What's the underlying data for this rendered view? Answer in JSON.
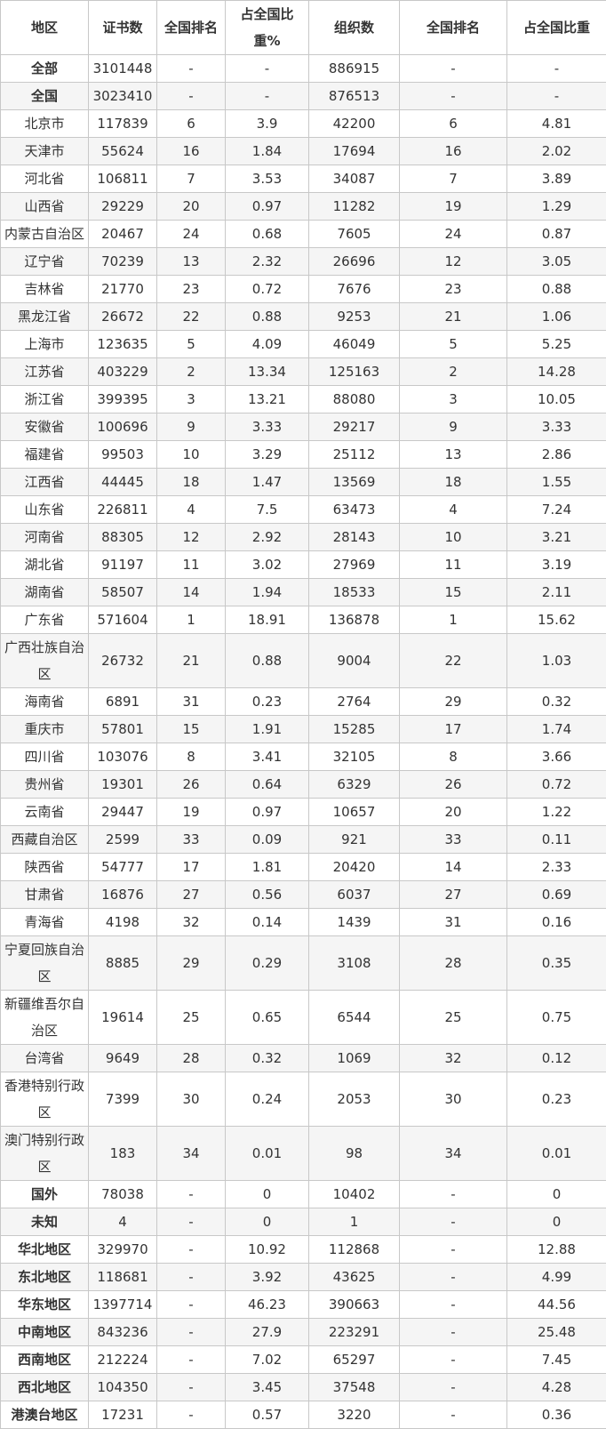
{
  "table": {
    "headers": [
      "地区",
      "证书数",
      "全国排名",
      "占全国比重%",
      "组织数",
      "全国排名",
      "占全国比重"
    ],
    "rows": [
      {
        "bold": true,
        "cells": [
          "全部",
          "3101448",
          "-",
          "-",
          "886915",
          "-",
          "-"
        ]
      },
      {
        "bold": true,
        "cells": [
          "全国",
          "3023410",
          "-",
          "-",
          "876513",
          "-",
          "-"
        ]
      },
      {
        "bold": false,
        "cells": [
          "北京市",
          "117839",
          "6",
          "3.9",
          "42200",
          "6",
          "4.81"
        ]
      },
      {
        "bold": false,
        "cells": [
          "天津市",
          "55624",
          "16",
          "1.84",
          "17694",
          "16",
          "2.02"
        ]
      },
      {
        "bold": false,
        "cells": [
          "河北省",
          "106811",
          "7",
          "3.53",
          "34087",
          "7",
          "3.89"
        ]
      },
      {
        "bold": false,
        "cells": [
          "山西省",
          "29229",
          "20",
          "0.97",
          "11282",
          "19",
          "1.29"
        ]
      },
      {
        "bold": false,
        "cells": [
          "内蒙古自治区",
          "20467",
          "24",
          "0.68",
          "7605",
          "24",
          "0.87"
        ]
      },
      {
        "bold": false,
        "cells": [
          "辽宁省",
          "70239",
          "13",
          "2.32",
          "26696",
          "12",
          "3.05"
        ]
      },
      {
        "bold": false,
        "cells": [
          "吉林省",
          "21770",
          "23",
          "0.72",
          "7676",
          "23",
          "0.88"
        ]
      },
      {
        "bold": false,
        "cells": [
          "黑龙江省",
          "26672",
          "22",
          "0.88",
          "9253",
          "21",
          "1.06"
        ]
      },
      {
        "bold": false,
        "cells": [
          "上海市",
          "123635",
          "5",
          "4.09",
          "46049",
          "5",
          "5.25"
        ]
      },
      {
        "bold": false,
        "cells": [
          "江苏省",
          "403229",
          "2",
          "13.34",
          "125163",
          "2",
          "14.28"
        ]
      },
      {
        "bold": false,
        "cells": [
          "浙江省",
          "399395",
          "3",
          "13.21",
          "88080",
          "3",
          "10.05"
        ]
      },
      {
        "bold": false,
        "cells": [
          "安徽省",
          "100696",
          "9",
          "3.33",
          "29217",
          "9",
          "3.33"
        ]
      },
      {
        "bold": false,
        "cells": [
          "福建省",
          "99503",
          "10",
          "3.29",
          "25112",
          "13",
          "2.86"
        ]
      },
      {
        "bold": false,
        "cells": [
          "江西省",
          "44445",
          "18",
          "1.47",
          "13569",
          "18",
          "1.55"
        ]
      },
      {
        "bold": false,
        "cells": [
          "山东省",
          "226811",
          "4",
          "7.5",
          "63473",
          "4",
          "7.24"
        ]
      },
      {
        "bold": false,
        "cells": [
          "河南省",
          "88305",
          "12",
          "2.92",
          "28143",
          "10",
          "3.21"
        ]
      },
      {
        "bold": false,
        "cells": [
          "湖北省",
          "91197",
          "11",
          "3.02",
          "27969",
          "11",
          "3.19"
        ]
      },
      {
        "bold": false,
        "cells": [
          "湖南省",
          "58507",
          "14",
          "1.94",
          "18533",
          "15",
          "2.11"
        ]
      },
      {
        "bold": false,
        "cells": [
          "广东省",
          "571604",
          "1",
          "18.91",
          "136878",
          "1",
          "15.62"
        ]
      },
      {
        "bold": false,
        "cells": [
          "广西壮族自治区",
          "26732",
          "21",
          "0.88",
          "9004",
          "22",
          "1.03"
        ]
      },
      {
        "bold": false,
        "cells": [
          "海南省",
          "6891",
          "31",
          "0.23",
          "2764",
          "29",
          "0.32"
        ]
      },
      {
        "bold": false,
        "cells": [
          "重庆市",
          "57801",
          "15",
          "1.91",
          "15285",
          "17",
          "1.74"
        ]
      },
      {
        "bold": false,
        "cells": [
          "四川省",
          "103076",
          "8",
          "3.41",
          "32105",
          "8",
          "3.66"
        ]
      },
      {
        "bold": false,
        "cells": [
          "贵州省",
          "19301",
          "26",
          "0.64",
          "6329",
          "26",
          "0.72"
        ]
      },
      {
        "bold": false,
        "cells": [
          "云南省",
          "29447",
          "19",
          "0.97",
          "10657",
          "20",
          "1.22"
        ]
      },
      {
        "bold": false,
        "cells": [
          "西藏自治区",
          "2599",
          "33",
          "0.09",
          "921",
          "33",
          "0.11"
        ]
      },
      {
        "bold": false,
        "cells": [
          "陕西省",
          "54777",
          "17",
          "1.81",
          "20420",
          "14",
          "2.33"
        ]
      },
      {
        "bold": false,
        "cells": [
          "甘肃省",
          "16876",
          "27",
          "0.56",
          "6037",
          "27",
          "0.69"
        ]
      },
      {
        "bold": false,
        "cells": [
          "青海省",
          "4198",
          "32",
          "0.14",
          "1439",
          "31",
          "0.16"
        ]
      },
      {
        "bold": false,
        "cells": [
          "宁夏回族自治区",
          "8885",
          "29",
          "0.29",
          "3108",
          "28",
          "0.35"
        ]
      },
      {
        "bold": false,
        "cells": [
          "新疆维吾尔自治区",
          "19614",
          "25",
          "0.65",
          "6544",
          "25",
          "0.75"
        ]
      },
      {
        "bold": false,
        "cells": [
          "台湾省",
          "9649",
          "28",
          "0.32",
          "1069",
          "32",
          "0.12"
        ]
      },
      {
        "bold": false,
        "cells": [
          "香港特别行政区",
          "7399",
          "30",
          "0.24",
          "2053",
          "30",
          "0.23"
        ]
      },
      {
        "bold": false,
        "cells": [
          "澳门特别行政区",
          "183",
          "34",
          "0.01",
          "98",
          "34",
          "0.01"
        ]
      },
      {
        "bold": true,
        "cells": [
          "国外",
          "78038",
          "-",
          "0",
          "10402",
          "-",
          "0"
        ]
      },
      {
        "bold": true,
        "cells": [
          "未知",
          "4",
          "-",
          "0",
          "1",
          "-",
          "0"
        ]
      },
      {
        "bold": true,
        "cells": [
          "华北地区",
          "329970",
          "-",
          "10.92",
          "112868",
          "-",
          "12.88"
        ]
      },
      {
        "bold": true,
        "cells": [
          "东北地区",
          "118681",
          "-",
          "3.92",
          "43625",
          "-",
          "4.99"
        ]
      },
      {
        "bold": true,
        "cells": [
          "华东地区",
          "1397714",
          "-",
          "46.23",
          "390663",
          "-",
          "44.56"
        ]
      },
      {
        "bold": true,
        "cells": [
          "中南地区",
          "843236",
          "-",
          "27.9",
          "223291",
          "-",
          "25.48"
        ]
      },
      {
        "bold": true,
        "cells": [
          "西南地区",
          "212224",
          "-",
          "7.02",
          "65297",
          "-",
          "7.45"
        ]
      },
      {
        "bold": true,
        "cells": [
          "西北地区",
          "104350",
          "-",
          "3.45",
          "37548",
          "-",
          "4.28"
        ]
      },
      {
        "bold": true,
        "cells": [
          "港澳台地区",
          "17231",
          "-",
          "0.57",
          "3220",
          "-",
          "0.36"
        ]
      }
    ]
  }
}
